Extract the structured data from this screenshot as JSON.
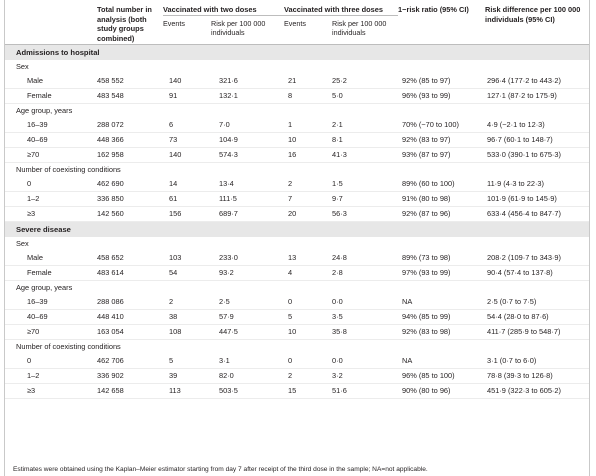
{
  "header": {
    "total": "Total number in analysis (both study groups combined)",
    "two_doses": "Vaccinated with two doses",
    "three_doses": "Vaccinated with three doses",
    "risk_ratio": "1−risk ratio (95% CI)",
    "risk_diff": "Risk difference per 100 000 individuals (95% CI)",
    "events": "Events",
    "risk_per": "Risk per 100 000 individuals"
  },
  "sections": [
    {
      "title": "Admissions to hospital",
      "groups": [
        {
          "title": "Sex",
          "rows": [
            {
              "label": "Male",
              "total": "458 552",
              "ev2": "140",
              "risk2": "321·6",
              "ev3": "21",
              "risk3": "25·2",
              "rr": "92% (85 to 97)",
              "rd": "296·4 (177·2 to 443·2)"
            },
            {
              "label": "Female",
              "total": "483 548",
              "ev2": "91",
              "risk2": "132·1",
              "ev3": "8",
              "risk3": "5·0",
              "rr": "96% (93 to 99)",
              "rd": "127·1 (87·2 to 175·9)"
            }
          ]
        },
        {
          "title": "Age group, years",
          "rows": [
            {
              "label": "16–39",
              "total": "288 072",
              "ev2": "6",
              "risk2": "7·0",
              "ev3": "1",
              "risk3": "2·1",
              "rr": "70% (−70 to 100)",
              "rd": "4·9 (−2·1 to 12·3)"
            },
            {
              "label": "40–69",
              "total": "448 366",
              "ev2": "73",
              "risk2": "104·9",
              "ev3": "10",
              "risk3": "8·1",
              "rr": "92% (83 to 97)",
              "rd": "96·7 (60·1 to 148·7)"
            },
            {
              "label": "≥70",
              "total": "162 958",
              "ev2": "140",
              "risk2": "574·3",
              "ev3": "16",
              "risk3": "41·3",
              "rr": "93% (87 to 97)",
              "rd": "533·0 (390·1 to 675·3)"
            }
          ]
        },
        {
          "title": "Number of coexisting conditions",
          "rows": [
            {
              "label": "0",
              "total": "462 690",
              "ev2": "14",
              "risk2": "13·4",
              "ev3": "2",
              "risk3": "1·5",
              "rr": "89% (60 to 100)",
              "rd": "11·9 (4·3 to 22·3)"
            },
            {
              "label": "1–2",
              "total": "336 850",
              "ev2": "61",
              "risk2": "111·5",
              "ev3": "7",
              "risk3": "9·7",
              "rr": "91% (80 to 98)",
              "rd": "101·9 (61·9 to 145·9)"
            },
            {
              "label": "≥3",
              "total": "142 560",
              "ev2": "156",
              "risk2": "689·7",
              "ev3": "20",
              "risk3": "56·3",
              "rr": "92% (87 to 96)",
              "rd": "633·4 (456·4 to 847·7)"
            }
          ]
        }
      ]
    },
    {
      "title": "Severe disease",
      "groups": [
        {
          "title": "Sex",
          "rows": [
            {
              "label": "Male",
              "total": "458 652",
              "ev2": "103",
              "risk2": "233·0",
              "ev3": "13",
              "risk3": "24·8",
              "rr": "89% (73 to 98)",
              "rd": "208·2 (109·7 to 343·9)"
            },
            {
              "label": "Female",
              "total": "483 614",
              "ev2": "54",
              "risk2": "93·2",
              "ev3": "4",
              "risk3": "2·8",
              "rr": "97% (93 to 99)",
              "rd": "90·4 (57·4 to 137·8)"
            }
          ]
        },
        {
          "title": "Age group, years",
          "rows": [
            {
              "label": "16–39",
              "total": "288 086",
              "ev2": "2",
              "risk2": "2·5",
              "ev3": "0",
              "risk3": "0·0",
              "rr": "NA",
              "rd": "2·5 (0·7 to 7·5)"
            },
            {
              "label": "40–69",
              "total": "448 410",
              "ev2": "38",
              "risk2": "57·9",
              "ev3": "5",
              "risk3": "3·5",
              "rr": "94% (85 to 99)",
              "rd": "54·4 (28·0 to 87·6)"
            },
            {
              "label": "≥70",
              "total": "163 054",
              "ev2": "108",
              "risk2": "447·5",
              "ev3": "10",
              "risk3": "35·8",
              "rr": "92% (83 to 98)",
              "rd": "411·7 (285·9 to 548·7)"
            }
          ]
        },
        {
          "title": "Number of coexisting conditions",
          "rows": [
            {
              "label": "0",
              "total": "462 706",
              "ev2": "5",
              "risk2": "3·1",
              "ev3": "0",
              "risk3": "0·0",
              "rr": "NA",
              "rd": "3·1 (0·7 to 6·0)"
            },
            {
              "label": "1–2",
              "total": "336 902",
              "ev2": "39",
              "risk2": "82·0",
              "ev3": "2",
              "risk3": "3·2",
              "rr": "96% (85 to 100)",
              "rd": "78·8 (39·3 to 126·8)"
            },
            {
              "label": "≥3",
              "total": "142 658",
              "ev2": "113",
              "risk2": "503·5",
              "ev3": "15",
              "risk3": "51·6",
              "rr": "90% (80 to 96)",
              "rd": "451·9 (322·3 to 605·2)"
            }
          ]
        }
      ]
    }
  ],
  "footnote": "Estimates were obtained using the Kaplan–Meier estimator starting from day 7 after receipt of the third dose in the sample; NA=not applicable."
}
